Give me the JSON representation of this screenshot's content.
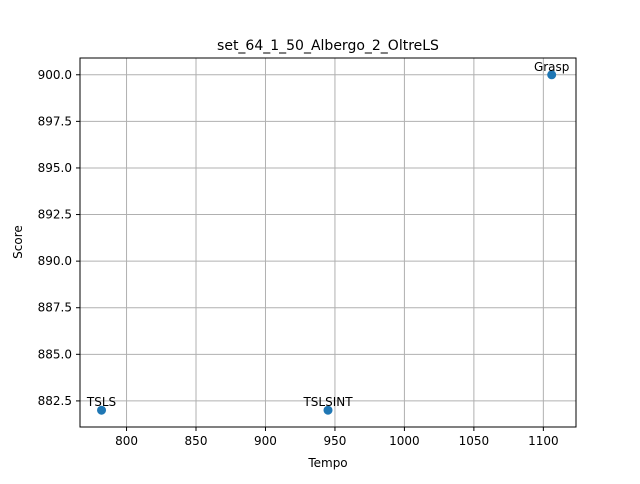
{
  "chart_data": {
    "type": "scatter",
    "title": "set_64_1_50_Albergo_2_OltreLS",
    "xlabel": "Tempo",
    "ylabel": "Score",
    "xlim": [
      766.5,
      1123.5
    ],
    "ylim": [
      881.1,
      900.9
    ],
    "x_ticks": [
      800,
      850,
      900,
      950,
      1000,
      1050,
      1100
    ],
    "x_tick_labels": [
      "800",
      "850",
      "900",
      "950",
      "1000",
      "1050",
      "1100"
    ],
    "y_ticks": [
      882.5,
      885.0,
      887.5,
      890.0,
      892.5,
      895.0,
      897.5,
      900.0
    ],
    "y_tick_labels": [
      "882.5",
      "885.0",
      "887.5",
      "890.0",
      "892.5",
      "895.0",
      "897.5",
      "900.0"
    ],
    "grid": true,
    "marker_color": "#1f77b4",
    "points": [
      {
        "label": "TSLS",
        "x": 782,
        "y": 882
      },
      {
        "label": "TSLSINT",
        "x": 945,
        "y": 882
      },
      {
        "label": "Grasp",
        "x": 1106,
        "y": 900
      }
    ]
  }
}
